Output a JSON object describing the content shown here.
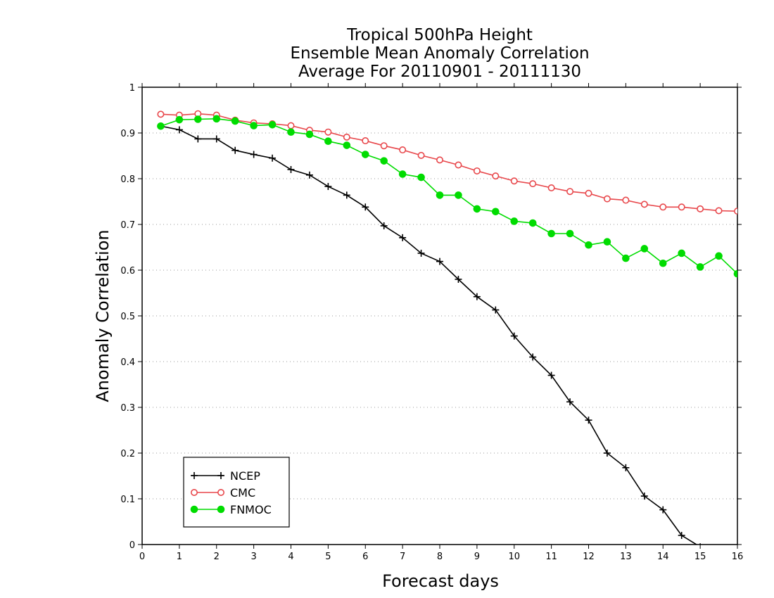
{
  "chart_data": {
    "type": "line",
    "title_lines": [
      "Tropical 500hPa Height",
      "Ensemble Mean Anomaly Correlation",
      "Average For 20110901 - 20111130"
    ],
    "xlabel": "Forecast days",
    "ylabel": "Anomaly Correlation",
    "xlim": [
      0,
      16
    ],
    "ylim": [
      0,
      1
    ],
    "xticks": [
      "0",
      "1",
      "2",
      "3",
      "4",
      "5",
      "6",
      "7",
      "8",
      "9",
      "10",
      "11",
      "12",
      "13",
      "14",
      "15",
      "16"
    ],
    "yticks": [
      "0",
      "0.1",
      "0.2",
      "0.3",
      "0.4",
      "0.5",
      "0.6",
      "0.7",
      "0.8",
      "0.9",
      "1"
    ],
    "grid": "horizontal dotted",
    "legend_position": "bottom-left",
    "x": [
      0.5,
      1,
      1.5,
      2,
      2.5,
      3,
      3.5,
      4,
      4.5,
      5,
      5.5,
      6,
      6.5,
      7,
      7.5,
      8,
      8.5,
      9,
      9.5,
      10,
      10.5,
      11,
      11.5,
      12,
      12.5,
      13,
      13.5,
      14,
      14.5,
      15,
      15.5,
      16
    ],
    "series": [
      {
        "name": "NCEP",
        "color": "#000000",
        "marker": "plus",
        "values": [
          0.915,
          0.907,
          0.887,
          0.887,
          0.862,
          0.853,
          0.845,
          0.82,
          0.808,
          0.783,
          0.764,
          0.738,
          0.697,
          0.671,
          0.637,
          0.619,
          0.58,
          0.542,
          0.513,
          0.456,
          0.41,
          0.37,
          0.312,
          0.272,
          0.2,
          0.168,
          0.106,
          0.076,
          0.02,
          -0.005,
          null,
          null
        ]
      },
      {
        "name": "CMC",
        "color": "#e8474b",
        "marker": "open-circle",
        "values": [
          0.941,
          0.939,
          0.942,
          0.939,
          0.928,
          0.922,
          0.92,
          0.916,
          0.906,
          0.902,
          0.891,
          0.883,
          0.872,
          0.863,
          0.851,
          0.841,
          0.83,
          0.817,
          0.806,
          0.795,
          0.789,
          0.78,
          0.772,
          0.768,
          0.756,
          0.753,
          0.744,
          0.738,
          0.738,
          0.734,
          0.73,
          0.729
        ]
      },
      {
        "name": "FNMOC",
        "color": "#00dc00",
        "marker": "filled-circle",
        "values": [
          0.915,
          0.929,
          0.93,
          0.931,
          0.926,
          0.916,
          0.918,
          0.902,
          0.897,
          0.882,
          0.873,
          0.853,
          0.839,
          0.81,
          0.803,
          0.764,
          0.764,
          0.734,
          0.728,
          0.707,
          0.703,
          0.68,
          0.68,
          0.655,
          0.662,
          0.626,
          0.647,
          0.615,
          0.637,
          0.607,
          0.631,
          0.592
        ]
      }
    ]
  }
}
